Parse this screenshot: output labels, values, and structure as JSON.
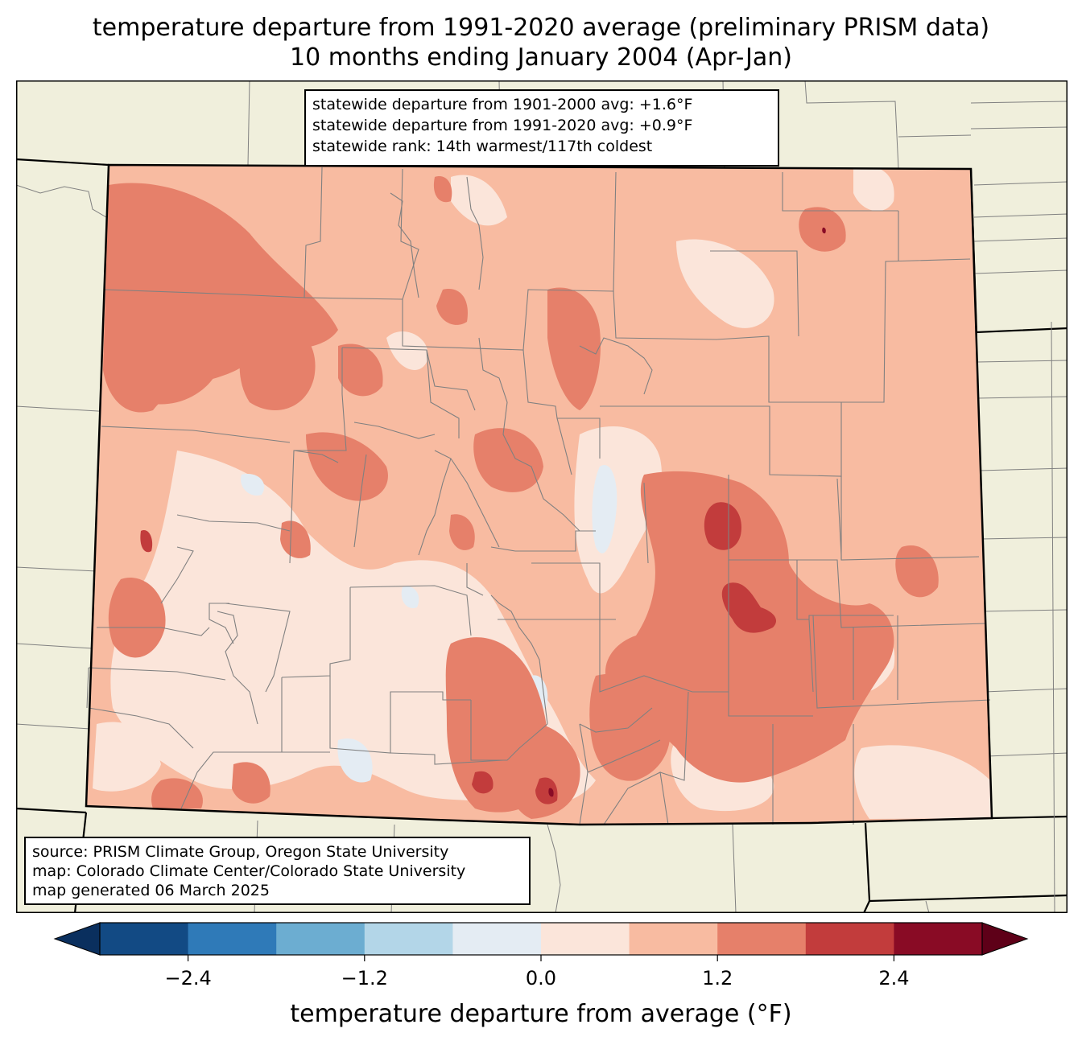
{
  "title": {
    "line1": "temperature departure from 1991-2020 average (preliminary PRISM data)",
    "line2": "10 months ending January 2004 (Apr-Jan)"
  },
  "stats": {
    "line1": "statewide departure from 1901-2000 avg: +1.6°F",
    "line2": "statewide departure from 1991-2020 avg: +0.9°F",
    "line3": "statewide rank: 14th warmest/117th coldest"
  },
  "source": {
    "line1": "source: PRISM Climate Group, Oregon State University",
    "line2": "map: Colorado Climate Center/Colorado State University",
    "line3": "map generated 06 March 2025"
  },
  "colorbar": {
    "label": "temperature departure from average (°F)",
    "bounds": [
      -3.0,
      -2.4,
      -1.8,
      -1.2,
      -0.6,
      0.0,
      0.6,
      1.2,
      1.8,
      2.4,
      3.0
    ],
    "tick_values": [
      -2.4,
      -1.2,
      0.0,
      1.2,
      2.4
    ],
    "ticks": [
      "−2.4",
      "−1.2",
      "0.0",
      "1.2",
      "2.4"
    ],
    "under_color": "#0a2f5e",
    "over_color": "#5e0018",
    "colors": [
      "#124a84",
      "#2f7ab8",
      "#6cadd1",
      "#b3d6e8",
      "#e4ecf3",
      "#fbe5da",
      "#f8bba1",
      "#e6806a",
      "#c23c3c",
      "#890b25"
    ]
  },
  "map_colors": {
    "land_outside": "#f0efdc",
    "state_border": "#000000",
    "county_border": "#808080"
  }
}
